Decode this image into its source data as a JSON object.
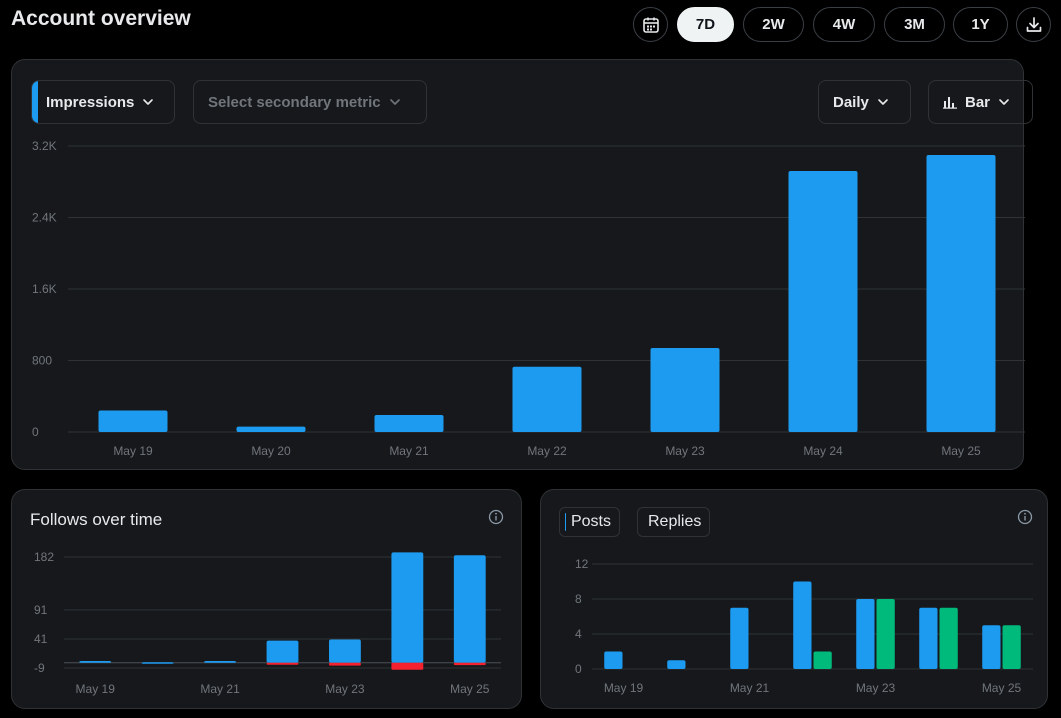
{
  "header": {
    "title": "Account overview",
    "ranges": [
      {
        "label": "7D",
        "active": true
      },
      {
        "label": "2W",
        "active": false
      },
      {
        "label": "4W",
        "active": false
      },
      {
        "label": "3M",
        "active": false
      },
      {
        "label": "1Y",
        "active": false
      }
    ],
    "calendar_icon": "calendar-icon",
    "download_icon": "download-icon"
  },
  "main": {
    "primary_metric": "Impressions",
    "secondary_metric_placeholder": "Select secondary metric",
    "interval": "Daily",
    "chart_style": "Bar",
    "chart_style_icon": "bar-chart-icon"
  },
  "follows": {
    "title": "Follows over time",
    "info_icon": "info-icon"
  },
  "posts": {
    "legend": [
      "Posts",
      "Replies"
    ],
    "info_icon": "info-icon"
  },
  "colors": {
    "blue": "#1d9bf0",
    "green": "#00ba7c",
    "red": "#f4212e",
    "grid": "#2f3336",
    "axis_text": "#71767b"
  },
  "chart_data": [
    {
      "type": "bar",
      "categories": [
        "May 19",
        "May 20",
        "May 21",
        "May 22",
        "May 23",
        "May 24",
        "May 25"
      ],
      "series": [
        {
          "values": [
            240,
            60,
            190,
            730,
            940,
            2920,
            3100
          ]
        }
      ],
      "ylim": [
        0,
        3200
      ],
      "yticks": [
        0,
        800,
        1600,
        2400,
        3200
      ],
      "ytick_labels": [
        "0",
        "800",
        "1.6K",
        "2.4K",
        "3.2K"
      ],
      "grid": true
    },
    {
      "type": "bar",
      "categories": [
        "May 19",
        "May 20",
        "May 21",
        "May 22",
        "May 23",
        "May 24",
        "May 25"
      ],
      "xtick_labels": [
        "May 19",
        "",
        "May 21",
        "",
        "May 23",
        "",
        "May 25"
      ],
      "series": [
        {
          "values": [
            3,
            1,
            3,
            38,
            40,
            190,
            185
          ]
        },
        {
          "values": [
            0,
            0,
            0,
            -3,
            -5,
            -12,
            -4
          ]
        }
      ],
      "ylim": [
        -9,
        182
      ],
      "yticks": [
        -9,
        41,
        91,
        182
      ],
      "ytick_labels": [
        "-9",
        "41",
        "91",
        "182"
      ],
      "grid": true
    },
    {
      "type": "bar",
      "categories": [
        "May 19",
        "May 20",
        "May 21",
        "May 22",
        "May 23",
        "May 24",
        "May 25"
      ],
      "xtick_labels": [
        "May 19",
        "",
        "May 21",
        "",
        "May 23",
        "",
        "May 25"
      ],
      "series": [
        {
          "name": "Posts",
          "values": [
            2,
            1,
            7,
            10,
            8,
            7,
            5
          ]
        },
        {
          "name": "Replies",
          "values": [
            0,
            0,
            0,
            2,
            8,
            7,
            5
          ]
        }
      ],
      "ylim": [
        0,
        12
      ],
      "yticks": [
        0,
        4,
        8,
        12
      ],
      "ytick_labels": [
        "0",
        "4",
        "8",
        "12"
      ],
      "grid": true
    }
  ]
}
